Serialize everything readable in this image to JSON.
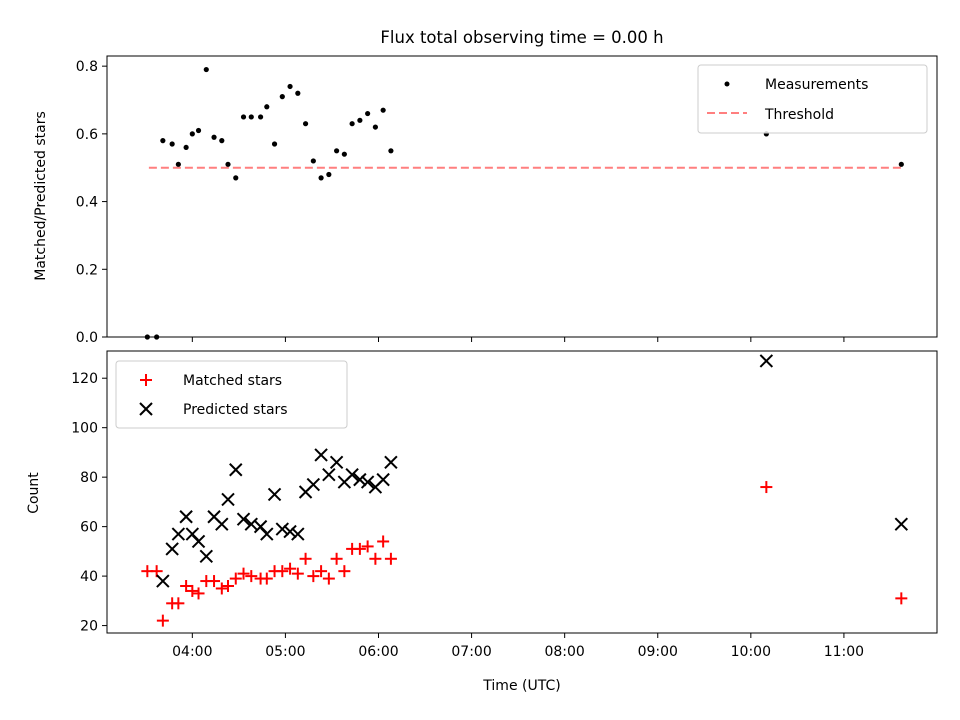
{
  "chart_data": [
    {
      "type": "scatter",
      "title": "Flux total observing time = 0.00 h",
      "xlabel": "",
      "ylabel": "Matched/Predicted stars",
      "ylim": [
        0,
        0.83
      ],
      "yticks": [
        "0.0",
        "0.2",
        "0.4",
        "0.6",
        "0.8"
      ],
      "legend_position": "top-right",
      "series": [
        {
          "name": "Measurements",
          "marker": "dot",
          "color": "#000000",
          "points": [
            [
              "03:31",
              0.0
            ],
            [
              "03:37",
              0.0
            ],
            [
              "03:41",
              0.58
            ],
            [
              "03:47",
              0.57
            ],
            [
              "03:51",
              0.51
            ],
            [
              "03:56",
              0.56
            ],
            [
              "04:00",
              0.6
            ],
            [
              "04:04",
              0.61
            ],
            [
              "04:09",
              0.79
            ],
            [
              "04:14",
              0.59
            ],
            [
              "04:19",
              0.58
            ],
            [
              "04:23",
              0.51
            ],
            [
              "04:28",
              0.47
            ],
            [
              "04:33",
              0.65
            ],
            [
              "04:38",
              0.65
            ],
            [
              "04:44",
              0.65
            ],
            [
              "04:48",
              0.68
            ],
            [
              "04:53",
              0.57
            ],
            [
              "04:58",
              0.71
            ],
            [
              "05:03",
              0.74
            ],
            [
              "05:08",
              0.72
            ],
            [
              "05:13",
              0.63
            ],
            [
              "05:18",
              0.52
            ],
            [
              "05:23",
              0.47
            ],
            [
              "05:28",
              0.48
            ],
            [
              "05:33",
              0.55
            ],
            [
              "05:38",
              0.54
            ],
            [
              "05:43",
              0.63
            ],
            [
              "05:48",
              0.64
            ],
            [
              "05:53",
              0.66
            ],
            [
              "05:58",
              0.62
            ],
            [
              "06:03",
              0.67
            ],
            [
              "06:08",
              0.55
            ],
            [
              "10:10",
              0.6
            ],
            [
              "11:37",
              0.51
            ]
          ]
        },
        {
          "name": "Threshold",
          "marker": "dashed-line",
          "color": "#ff7f7f",
          "points": [
            [
              "03:32",
              0.5
            ],
            [
              "11:37",
              0.5
            ]
          ]
        }
      ]
    },
    {
      "type": "scatter",
      "title": "",
      "xlabel": "Time (UTC)",
      "ylabel": "Count",
      "ylim": [
        17,
        131
      ],
      "yticks": [
        "20",
        "40",
        "60",
        "80",
        "100",
        "120"
      ],
      "xlim": [
        "03:05",
        "12:00"
      ],
      "xticks": [
        "04:00",
        "05:00",
        "06:00",
        "07:00",
        "08:00",
        "09:00",
        "10:00",
        "11:00"
      ],
      "legend_position": "top-left",
      "series": [
        {
          "name": "Matched stars",
          "marker": "plus",
          "color": "#ff0000",
          "points": [
            [
              "03:31",
              42
            ],
            [
              "03:37",
              42
            ],
            [
              "03:41",
              22
            ],
            [
              "03:47",
              29
            ],
            [
              "03:51",
              29
            ],
            [
              "03:56",
              36
            ],
            [
              "04:00",
              34
            ],
            [
              "04:04",
              33
            ],
            [
              "04:09",
              38
            ],
            [
              "04:14",
              38
            ],
            [
              "04:19",
              35
            ],
            [
              "04:23",
              36
            ],
            [
              "04:28",
              39
            ],
            [
              "04:33",
              41
            ],
            [
              "04:38",
              40
            ],
            [
              "04:44",
              39
            ],
            [
              "04:48",
              39
            ],
            [
              "04:53",
              42
            ],
            [
              "04:58",
              42
            ],
            [
              "05:03",
              43
            ],
            [
              "05:08",
              41
            ],
            [
              "05:13",
              47
            ],
            [
              "05:18",
              40
            ],
            [
              "05:23",
              42
            ],
            [
              "05:28",
              39
            ],
            [
              "05:33",
              47
            ],
            [
              "05:38",
              42
            ],
            [
              "05:43",
              51
            ],
            [
              "05:48",
              51
            ],
            [
              "05:53",
              52
            ],
            [
              "05:58",
              47
            ],
            [
              "06:03",
              54
            ],
            [
              "06:08",
              47
            ],
            [
              "10:10",
              76
            ],
            [
              "11:37",
              31
            ]
          ]
        },
        {
          "name": "Predicted stars",
          "marker": "x",
          "color": "#000000",
          "points": [
            [
              "03:41",
              38
            ],
            [
              "03:47",
              51
            ],
            [
              "03:51",
              57
            ],
            [
              "03:56",
              64
            ],
            [
              "04:00",
              57
            ],
            [
              "04:04",
              54
            ],
            [
              "04:09",
              48
            ],
            [
              "04:14",
              64
            ],
            [
              "04:19",
              61
            ],
            [
              "04:23",
              71
            ],
            [
              "04:28",
              83
            ],
            [
              "04:33",
              63
            ],
            [
              "04:38",
              61
            ],
            [
              "04:44",
              60
            ],
            [
              "04:48",
              57
            ],
            [
              "04:53",
              73
            ],
            [
              "04:58",
              59
            ],
            [
              "05:03",
              58
            ],
            [
              "05:08",
              57
            ],
            [
              "05:13",
              74
            ],
            [
              "05:18",
              77
            ],
            [
              "05:23",
              89
            ],
            [
              "05:28",
              81
            ],
            [
              "05:33",
              86
            ],
            [
              "05:38",
              78
            ],
            [
              "05:43",
              81
            ],
            [
              "05:48",
              79
            ],
            [
              "05:53",
              78
            ],
            [
              "05:58",
              76
            ],
            [
              "06:03",
              79
            ],
            [
              "06:08",
              86
            ],
            [
              "10:10",
              127
            ],
            [
              "11:37",
              61
            ]
          ]
        }
      ]
    }
  ]
}
